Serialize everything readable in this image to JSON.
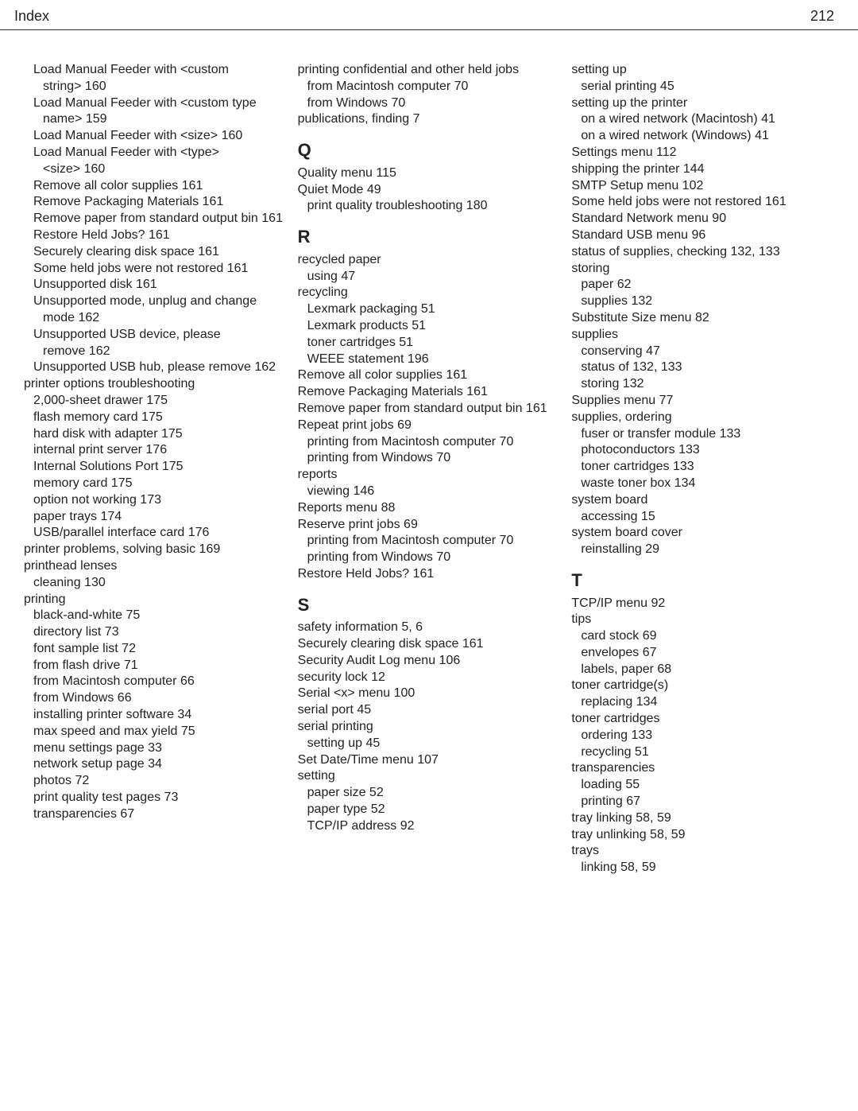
{
  "header": {
    "label": "Index",
    "page_number": "212"
  },
  "columns": [
    {
      "blocks": [
        {
          "entries": [
            {
              "level": 1,
              "text": "Load Manual Feeder with <custom string>  160",
              "wrap": true
            },
            {
              "level": 1,
              "text": "Load Manual Feeder with <custom type name>  159",
              "wrap": true
            },
            {
              "level": 1,
              "text": "Load Manual Feeder with <size>  160",
              "wrap": true
            },
            {
              "level": 1,
              "text": "Load Manual Feeder with <type> <size>  160",
              "wrap": true
            },
            {
              "level": 1,
              "text": "Remove all color supplies  161"
            },
            {
              "level": 1,
              "text": "Remove Packaging Materials  161"
            },
            {
              "level": 1,
              "text": "Remove paper from standard output bin  161",
              "wrap": true
            },
            {
              "level": 1,
              "text": "Restore Held Jobs?  161"
            },
            {
              "level": 1,
              "text": "Securely clearing disk space  161"
            },
            {
              "level": 1,
              "text": "Some held jobs were not restored  161",
              "wrap": true
            },
            {
              "level": 1,
              "text": "Unsupported disk  161"
            },
            {
              "level": 1,
              "text": "Unsupported mode, unplug and change mode  162",
              "wrap": true
            },
            {
              "level": 1,
              "text": "Unsupported USB device, please remove  162",
              "wrap": true
            },
            {
              "level": 1,
              "text": "Unsupported USB hub, please remove  162",
              "wrap": true
            },
            {
              "level": 0,
              "text": "printer options troubleshooting "
            },
            {
              "level": 1,
              "text": "2,000-sheet drawer  175"
            },
            {
              "level": 1,
              "text": "flash memory card  175"
            },
            {
              "level": 1,
              "text": "hard disk with adapter  175"
            },
            {
              "level": 1,
              "text": "internal print server  176"
            },
            {
              "level": 1,
              "text": "Internal Solutions Port  175"
            },
            {
              "level": 1,
              "text": "memory card  175"
            },
            {
              "level": 1,
              "text": "option not working  173"
            },
            {
              "level": 1,
              "text": "paper trays  174"
            },
            {
              "level": 1,
              "text": "USB/parallel interface card  176"
            },
            {
              "level": 0,
              "text": "printer problems, solving basic  169"
            },
            {
              "level": 0,
              "text": "printhead lenses "
            },
            {
              "level": 1,
              "text": "cleaning  130"
            },
            {
              "level": 0,
              "text": "printing "
            },
            {
              "level": 1,
              "text": "black-and-white  75"
            },
            {
              "level": 1,
              "text": "directory list  73"
            },
            {
              "level": 1,
              "text": "font sample list  72"
            },
            {
              "level": 1,
              "text": "from flash drive  71"
            },
            {
              "level": 1,
              "text": "from Macintosh computer  66"
            },
            {
              "level": 1,
              "text": "from Windows  66"
            },
            {
              "level": 1,
              "text": "installing printer software  34"
            },
            {
              "level": 1,
              "text": "max speed and max yield  75"
            },
            {
              "level": 1,
              "text": "menu settings page  33"
            },
            {
              "level": 1,
              "text": "network setup page  34"
            },
            {
              "level": 1,
              "text": "photos  72"
            },
            {
              "level": 1,
              "text": "print quality test pages  73"
            },
            {
              "level": 1,
              "text": "transparencies  67"
            }
          ]
        }
      ]
    },
    {
      "blocks": [
        {
          "entries": [
            {
              "level": 0,
              "text": "printing confidential and other held jobs ",
              "wrap": true
            },
            {
              "level": 1,
              "text": "from Macintosh computer  70"
            },
            {
              "level": 1,
              "text": "from Windows  70"
            },
            {
              "level": 0,
              "text": "publications, finding  7"
            }
          ]
        },
        {
          "letter": "Q",
          "entries": [
            {
              "level": 0,
              "text": "Quality menu  115"
            },
            {
              "level": 0,
              "text": "Quiet Mode  49"
            },
            {
              "level": 1,
              "text": "print quality troubleshooting  180"
            }
          ]
        },
        {
          "letter": "R",
          "entries": [
            {
              "level": 0,
              "text": "recycled paper "
            },
            {
              "level": 1,
              "text": "using  47"
            },
            {
              "level": 0,
              "text": "recycling "
            },
            {
              "level": 1,
              "text": "Lexmark packaging  51"
            },
            {
              "level": 1,
              "text": "Lexmark products  51"
            },
            {
              "level": 1,
              "text": "toner cartridges  51"
            },
            {
              "level": 1,
              "text": "WEEE statement  196"
            },
            {
              "level": 0,
              "text": "Remove all color supplies  161"
            },
            {
              "level": 0,
              "text": "Remove Packaging Materials  161"
            },
            {
              "level": 0,
              "text": "Remove paper from standard output bin  161",
              "wrap": true
            },
            {
              "level": 0,
              "text": "Repeat print jobs  69"
            },
            {
              "level": 1,
              "text": "printing from Macintosh computer  70",
              "wrap": true
            },
            {
              "level": 1,
              "text": "printing from Windows  70"
            },
            {
              "level": 0,
              "text": "reports "
            },
            {
              "level": 1,
              "text": "viewing  146"
            },
            {
              "level": 0,
              "text": "Reports menu  88"
            },
            {
              "level": 0,
              "text": "Reserve print jobs  69"
            },
            {
              "level": 1,
              "text": "printing from Macintosh computer  70",
              "wrap": true
            },
            {
              "level": 1,
              "text": "printing from Windows  70"
            },
            {
              "level": 0,
              "text": "Restore Held Jobs?  161"
            }
          ]
        },
        {
          "letter": "S",
          "entries": [
            {
              "level": 0,
              "text": "safety information  5, 6"
            },
            {
              "level": 0,
              "text": "Securely clearing disk space  161"
            },
            {
              "level": 0,
              "text": "Security Audit Log menu  106"
            },
            {
              "level": 0,
              "text": "security lock  12"
            },
            {
              "level": 0,
              "text": "Serial <x> menu  100"
            },
            {
              "level": 0,
              "text": "serial port  45"
            },
            {
              "level": 0,
              "text": "serial printing "
            },
            {
              "level": 1,
              "text": "setting up  45"
            },
            {
              "level": 0,
              "text": "Set Date/Time menu  107"
            },
            {
              "level": 0,
              "text": "setting "
            },
            {
              "level": 1,
              "text": "paper size  52"
            },
            {
              "level": 1,
              "text": "paper type  52"
            },
            {
              "level": 1,
              "text": "TCP/IP address  92"
            }
          ]
        }
      ]
    },
    {
      "blocks": [
        {
          "entries": [
            {
              "level": 0,
              "text": "setting up "
            },
            {
              "level": 1,
              "text": "serial printing  45"
            },
            {
              "level": 0,
              "text": "setting up the printer "
            },
            {
              "level": 1,
              "text": "on a wired network (Macintosh)  41",
              "wrap": true
            },
            {
              "level": 1,
              "text": "on a wired network (Windows)  41"
            },
            {
              "level": 0,
              "text": "Settings menu  112"
            },
            {
              "level": 0,
              "text": "shipping the printer  144"
            },
            {
              "level": 0,
              "text": "SMTP Setup menu  102"
            },
            {
              "level": 0,
              "text": "Some held jobs were not restored  161",
              "wrap": true
            },
            {
              "level": 0,
              "text": "Standard Network menu  90"
            },
            {
              "level": 0,
              "text": "Standard USB menu  96"
            },
            {
              "level": 0,
              "text": "status of supplies, checking  132, 133",
              "wrap": true
            },
            {
              "level": 0,
              "text": "storing "
            },
            {
              "level": 1,
              "text": "paper  62"
            },
            {
              "level": 1,
              "text": "supplies  132"
            },
            {
              "level": 0,
              "text": "Substitute Size menu  82"
            },
            {
              "level": 0,
              "text": "supplies "
            },
            {
              "level": 1,
              "text": "conserving  47"
            },
            {
              "level": 1,
              "text": "status of  132, 133"
            },
            {
              "level": 1,
              "text": "storing  132"
            },
            {
              "level": 0,
              "text": "Supplies menu  77"
            },
            {
              "level": 0,
              "text": "supplies, ordering "
            },
            {
              "level": 1,
              "text": "fuser or transfer module  133"
            },
            {
              "level": 1,
              "text": "photoconductors  133"
            },
            {
              "level": 1,
              "text": "toner cartridges  133"
            },
            {
              "level": 1,
              "text": "waste toner box  134"
            },
            {
              "level": 0,
              "text": "system board "
            },
            {
              "level": 1,
              "text": "accessing  15"
            },
            {
              "level": 0,
              "text": "system board cover "
            },
            {
              "level": 1,
              "text": "reinstalling  29"
            }
          ]
        },
        {
          "letter": "T",
          "entries": [
            {
              "level": 0,
              "text": "TCP/IP menu  92"
            },
            {
              "level": 0,
              "text": "tips "
            },
            {
              "level": 1,
              "text": "card stock  69"
            },
            {
              "level": 1,
              "text": "envelopes  67"
            },
            {
              "level": 1,
              "text": "labels, paper  68"
            },
            {
              "level": 0,
              "text": "toner cartridge(s) "
            },
            {
              "level": 1,
              "text": "replacing  134"
            },
            {
              "level": 0,
              "text": "toner cartridges "
            },
            {
              "level": 1,
              "text": "ordering  133"
            },
            {
              "level": 1,
              "text": "recycling  51"
            },
            {
              "level": 0,
              "text": "transparencies "
            },
            {
              "level": 1,
              "text": "loading  55"
            },
            {
              "level": 1,
              "text": "printing  67"
            },
            {
              "level": 0,
              "text": "tray linking  58, 59"
            },
            {
              "level": 0,
              "text": "tray unlinking  58, 59"
            },
            {
              "level": 0,
              "text": "trays "
            },
            {
              "level": 1,
              "text": "linking  58, 59"
            }
          ]
        }
      ]
    }
  ]
}
